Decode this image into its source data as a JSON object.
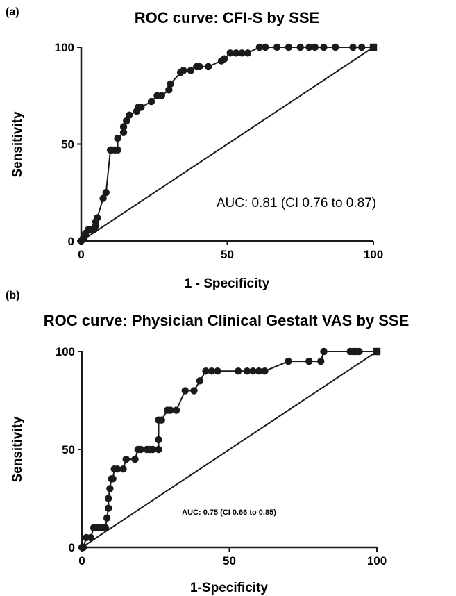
{
  "chart_data": [
    {
      "type": "line",
      "panel_label": "(a)",
      "title": "ROC curve: CFI-S by SSE",
      "xlabel": "1 - Specificity",
      "ylabel": "Sensitivity",
      "xlim": [
        0,
        100
      ],
      "ylim": [
        0,
        100
      ],
      "xticks": [
        "0",
        "50",
        "100"
      ],
      "yticks": [
        "0",
        "50",
        "100"
      ],
      "annotation": "AUC: 0.81 (CI 0.76 to 0.87)",
      "grid": false,
      "legend": "none",
      "reference_line": [
        [
          0,
          0
        ],
        [
          100,
          100
        ]
      ],
      "series": [
        {
          "x": [
            0,
            0.5,
            1,
            1.5,
            2.5,
            3.5,
            4.5,
            5,
            5,
            5.5,
            7.5,
            8.5,
            10,
            10.5,
            11.5,
            12.5,
            12.5,
            14.5,
            14.5,
            15.5,
            16.5,
            19,
            19.5,
            20.5,
            24,
            26,
            27.5,
            30,
            30.5,
            34,
            35,
            37.5,
            39.5,
            40.5,
            43.5,
            48,
            49,
            51,
            53,
            55,
            57,
            61,
            63,
            67,
            71,
            75,
            78,
            80,
            83,
            87,
            93,
            96,
            100
          ],
          "y": [
            0,
            1,
            2,
            4,
            6,
            6,
            6,
            8,
            10,
            12,
            22,
            25,
            47,
            47,
            47,
            47,
            53,
            56,
            59,
            62,
            65,
            67,
            69,
            69,
            72,
            75,
            75,
            78,
            81,
            87,
            88,
            88,
            90,
            90,
            90,
            93,
            94,
            97,
            97,
            97,
            97,
            100,
            100,
            100,
            100,
            100,
            100,
            100,
            100,
            100,
            100,
            100,
            100
          ]
        }
      ]
    },
    {
      "type": "line",
      "panel_label": "(b)",
      "title": "ROC curve: Physician Clinical Gestalt VAS by SSE",
      "xlabel": "1-Specificity",
      "ylabel": "Sensitivity",
      "xlim": [
        0,
        100
      ],
      "ylim": [
        0,
        100
      ],
      "xticks": [
        "0",
        "50",
        "100"
      ],
      "yticks": [
        "0",
        "50",
        "100"
      ],
      "annotation": "AUC: 0.75 (CI 0.66 to 0.85)",
      "grid": false,
      "legend": "none",
      "reference_line": [
        [
          0,
          0
        ],
        [
          100,
          100
        ]
      ],
      "series": [
        {
          "x": [
            0,
            0.5,
            1.5,
            3,
            4,
            5,
            6,
            7,
            8,
            8.5,
            9,
            9,
            9.5,
            10,
            10.5,
            11,
            12,
            14,
            15,
            18,
            19,
            20,
            22,
            23,
            24,
            26,
            26,
            26,
            27,
            29,
            30,
            32,
            35,
            38,
            40,
            42,
            44,
            46,
            53,
            56,
            58,
            60,
            62,
            70,
            77,
            81,
            82,
            91,
            92,
            93,
            94,
            100
          ],
          "y": [
            0,
            0,
            5,
            5,
            10,
            10,
            10,
            10,
            10,
            15,
            20,
            25,
            30,
            35,
            35,
            40,
            40,
            40,
            45,
            45,
            50,
            50,
            50,
            50,
            50,
            50,
            55,
            65,
            65,
            70,
            70,
            70,
            80,
            80,
            85,
            90,
            90,
            90,
            90,
            90,
            90,
            90,
            90,
            95,
            95,
            95,
            100,
            100,
            100,
            100,
            100,
            100
          ]
        }
      ]
    }
  ]
}
